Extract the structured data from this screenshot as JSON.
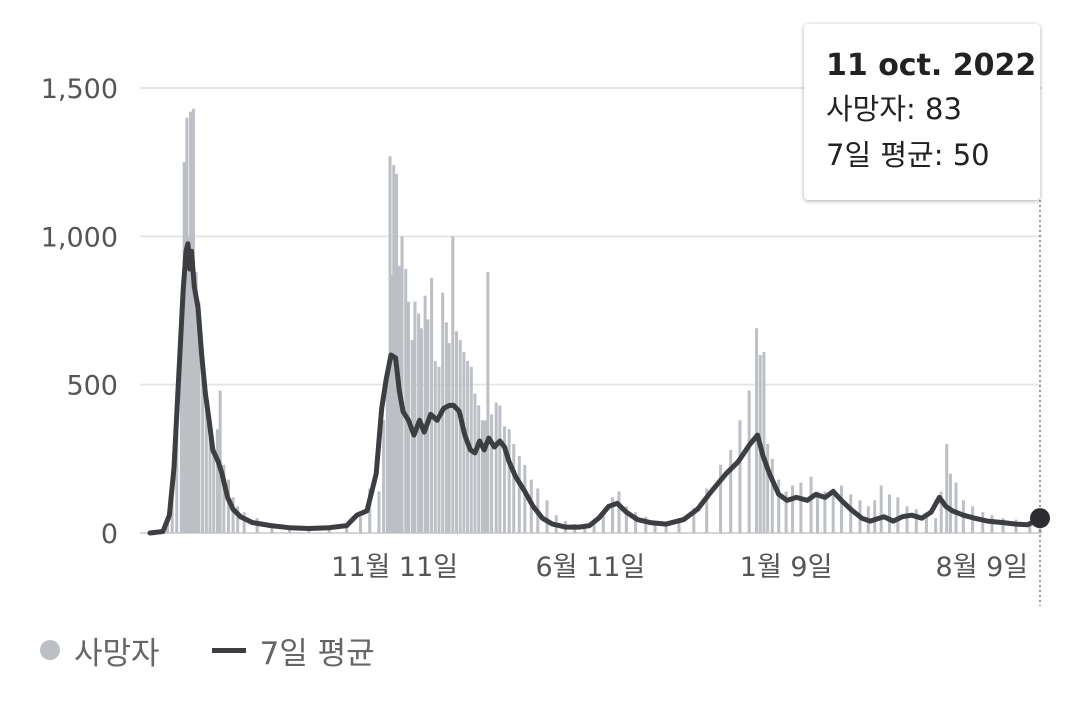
{
  "chart_data": {
    "type": "bar",
    "title": "",
    "xlabel": "",
    "ylabel": "",
    "ylim": [
      0,
      1500
    ],
    "grid": true,
    "y_ticks": [
      0,
      500,
      1000,
      1500
    ],
    "y_tick_labels": [
      "0",
      "500",
      "1,000",
      "1,500"
    ],
    "x_range": [
      "2020-02-20",
      "2022-10-11"
    ],
    "x_ticks": [
      {
        "date": "2020-11-11",
        "label": "11월 11일"
      },
      {
        "date": "2021-06-11",
        "label": "6월 11일"
      },
      {
        "date": "2022-01-09",
        "label": "1월 9일"
      },
      {
        "date": "2022-08-09",
        "label": "8월 9일"
      }
    ],
    "legend_position": "bottom-left",
    "colors": {
      "bars": "#bcbfc4",
      "line": "#3c3e42",
      "grid": "#e6e6e6"
    },
    "series": [
      {
        "name": "사망자",
        "kind": "bar",
        "points": [
          [
            "2020-02-20",
            0
          ],
          [
            "2020-03-05",
            5
          ],
          [
            "2020-03-10",
            40
          ],
          [
            "2020-03-15",
            150
          ],
          [
            "2020-03-20",
            420
          ],
          [
            "2020-03-25",
            780
          ],
          [
            "2020-03-28",
            1250
          ],
          [
            "2020-03-31",
            1400
          ],
          [
            "2020-04-02",
            1000
          ],
          [
            "2020-04-04",
            1420
          ],
          [
            "2020-04-07",
            1430
          ],
          [
            "2020-04-10",
            880
          ],
          [
            "2020-04-13",
            780
          ],
          [
            "2020-04-17",
            600
          ],
          [
            "2020-04-21",
            450
          ],
          [
            "2020-04-25",
            360
          ],
          [
            "2020-04-29",
            290
          ],
          [
            "2020-05-03",
            350
          ],
          [
            "2020-05-06",
            480
          ],
          [
            "2020-05-10",
            230
          ],
          [
            "2020-05-15",
            180
          ],
          [
            "2020-05-20",
            120
          ],
          [
            "2020-05-25",
            90
          ],
          [
            "2020-06-01",
            70
          ],
          [
            "2020-06-15",
            50
          ],
          [
            "2020-07-01",
            30
          ],
          [
            "2020-07-20",
            20
          ],
          [
            "2020-08-10",
            15
          ],
          [
            "2020-09-01",
            15
          ],
          [
            "2020-09-20",
            30
          ],
          [
            "2020-10-05",
            55
          ],
          [
            "2020-10-15",
            150
          ],
          [
            "2020-10-25",
            140
          ],
          [
            "2020-10-30",
            380
          ],
          [
            "2020-11-03",
            520
          ],
          [
            "2020-11-06",
            1270
          ],
          [
            "2020-11-08",
            870
          ],
          [
            "2020-11-10",
            1240
          ],
          [
            "2020-11-13",
            1210
          ],
          [
            "2020-11-16",
            900
          ],
          [
            "2020-11-19",
            1000
          ],
          [
            "2020-11-23",
            890
          ],
          [
            "2020-11-26",
            780
          ],
          [
            "2020-11-30",
            650
          ],
          [
            "2020-12-03",
            780
          ],
          [
            "2020-12-07",
            740
          ],
          [
            "2020-12-10",
            690
          ],
          [
            "2020-12-14",
            800
          ],
          [
            "2020-12-17",
            720
          ],
          [
            "2020-12-21",
            860
          ],
          [
            "2020-12-25",
            580
          ],
          [
            "2020-12-29",
            560
          ],
          [
            "2021-01-02",
            810
          ],
          [
            "2021-01-06",
            710
          ],
          [
            "2021-01-09",
            640
          ],
          [
            "2021-01-13",
            1000
          ],
          [
            "2021-01-17",
            680
          ],
          [
            "2021-01-21",
            650
          ],
          [
            "2021-01-25",
            610
          ],
          [
            "2021-01-29",
            580
          ],
          [
            "2021-02-02",
            560
          ],
          [
            "2021-02-06",
            470
          ],
          [
            "2021-02-10",
            430
          ],
          [
            "2021-02-14",
            380
          ],
          [
            "2021-02-17",
            380
          ],
          [
            "2021-02-20",
            880
          ],
          [
            "2021-02-24",
            400
          ],
          [
            "2021-03-01",
            440
          ],
          [
            "2021-03-05",
            430
          ],
          [
            "2021-03-10",
            360
          ],
          [
            "2021-03-15",
            350
          ],
          [
            "2021-03-20",
            300
          ],
          [
            "2021-03-26",
            260
          ],
          [
            "2021-04-01",
            230
          ],
          [
            "2021-04-08",
            180
          ],
          [
            "2021-04-15",
            150
          ],
          [
            "2021-04-25",
            110
          ],
          [
            "2021-05-05",
            60
          ],
          [
            "2021-05-15",
            40
          ],
          [
            "2021-05-25",
            30
          ],
          [
            "2021-06-05",
            20
          ],
          [
            "2021-06-15",
            40
          ],
          [
            "2021-06-25",
            70
          ],
          [
            "2021-07-05",
            120
          ],
          [
            "2021-07-12",
            140
          ],
          [
            "2021-07-20",
            90
          ],
          [
            "2021-07-30",
            70
          ],
          [
            "2021-08-10",
            55
          ],
          [
            "2021-08-20",
            40
          ],
          [
            "2021-09-01",
            35
          ],
          [
            "2021-09-15",
            50
          ],
          [
            "2021-10-01",
            85
          ],
          [
            "2021-10-15",
            150
          ],
          [
            "2021-10-30",
            230
          ],
          [
            "2021-11-10",
            280
          ],
          [
            "2021-11-20",
            380
          ],
          [
            "2021-11-30",
            480
          ],
          [
            "2021-12-08",
            690
          ],
          [
            "2021-12-12",
            600
          ],
          [
            "2021-12-16",
            610
          ],
          [
            "2021-12-20",
            300
          ],
          [
            "2021-12-25",
            250
          ],
          [
            "2022-01-01",
            180
          ],
          [
            "2022-01-09",
            140
          ],
          [
            "2022-01-16",
            160
          ],
          [
            "2022-01-25",
            170
          ],
          [
            "2022-02-05",
            190
          ],
          [
            "2022-02-12",
            140
          ],
          [
            "2022-02-20",
            140
          ],
          [
            "2022-03-01",
            150
          ],
          [
            "2022-03-10",
            160
          ],
          [
            "2022-03-20",
            130
          ],
          [
            "2022-03-30",
            110
          ],
          [
            "2022-04-08",
            90
          ],
          [
            "2022-04-15",
            110
          ],
          [
            "2022-04-22",
            160
          ],
          [
            "2022-05-01",
            130
          ],
          [
            "2022-05-10",
            120
          ],
          [
            "2022-05-20",
            90
          ],
          [
            "2022-05-30",
            80
          ],
          [
            "2022-06-10",
            60
          ],
          [
            "2022-06-20",
            50
          ],
          [
            "2022-06-26",
            140
          ],
          [
            "2022-07-02",
            300
          ],
          [
            "2022-07-06",
            200
          ],
          [
            "2022-07-12",
            170
          ],
          [
            "2022-07-20",
            110
          ],
          [
            "2022-07-30",
            90
          ],
          [
            "2022-08-10",
            70
          ],
          [
            "2022-08-20",
            60
          ],
          [
            "2022-09-01",
            50
          ],
          [
            "2022-09-15",
            45
          ],
          [
            "2022-09-30",
            40
          ],
          [
            "2022-10-11",
            83
          ]
        ]
      },
      {
        "name": "7일 평균",
        "kind": "line",
        "points": [
          [
            "2020-02-20",
            0
          ],
          [
            "2020-03-05",
            5
          ],
          [
            "2020-03-12",
            60
          ],
          [
            "2020-03-17",
            220
          ],
          [
            "2020-03-22",
            520
          ],
          [
            "2020-03-27",
            820
          ],
          [
            "2020-03-30",
            950
          ],
          [
            "2020-04-01",
            975
          ],
          [
            "2020-04-03",
            890
          ],
          [
            "2020-04-05",
            950
          ],
          [
            "2020-04-08",
            830
          ],
          [
            "2020-04-12",
            760
          ],
          [
            "2020-04-16",
            600
          ],
          [
            "2020-04-20",
            470
          ],
          [
            "2020-04-24",
            380
          ],
          [
            "2020-04-28",
            280
          ],
          [
            "2020-05-04",
            240
          ],
          [
            "2020-05-08",
            200
          ],
          [
            "2020-05-14",
            120
          ],
          [
            "2020-05-20",
            80
          ],
          [
            "2020-05-28",
            55
          ],
          [
            "2020-06-10",
            35
          ],
          [
            "2020-06-30",
            25
          ],
          [
            "2020-07-20",
            18
          ],
          [
            "2020-08-10",
            15
          ],
          [
            "2020-09-01",
            18
          ],
          [
            "2020-09-20",
            25
          ],
          [
            "2020-10-01",
            60
          ],
          [
            "2020-10-12",
            75
          ],
          [
            "2020-10-22",
            200
          ],
          [
            "2020-10-28",
            420
          ],
          [
            "2020-11-02",
            520
          ],
          [
            "2020-11-07",
            600
          ],
          [
            "2020-11-12",
            590
          ],
          [
            "2020-11-16",
            480
          ],
          [
            "2020-11-20",
            410
          ],
          [
            "2020-11-26",
            380
          ],
          [
            "2020-12-02",
            330
          ],
          [
            "2020-12-08",
            380
          ],
          [
            "2020-12-13",
            340
          ],
          [
            "2020-12-20",
            400
          ],
          [
            "2020-12-27",
            380
          ],
          [
            "2021-01-03",
            420
          ],
          [
            "2021-01-09",
            430
          ],
          [
            "2021-01-14",
            430
          ],
          [
            "2021-01-20",
            410
          ],
          [
            "2021-01-26",
            330
          ],
          [
            "2021-02-01",
            280
          ],
          [
            "2021-02-06",
            270
          ],
          [
            "2021-02-11",
            310
          ],
          [
            "2021-02-16",
            280
          ],
          [
            "2021-02-21",
            320
          ],
          [
            "2021-02-27",
            290
          ],
          [
            "2021-03-05",
            310
          ],
          [
            "2021-03-10",
            290
          ],
          [
            "2021-03-15",
            240
          ],
          [
            "2021-03-22",
            190
          ],
          [
            "2021-04-01",
            140
          ],
          [
            "2021-04-10",
            90
          ],
          [
            "2021-04-20",
            50
          ],
          [
            "2021-05-01",
            30
          ],
          [
            "2021-05-15",
            20
          ],
          [
            "2021-05-30",
            20
          ],
          [
            "2021-06-10",
            25
          ],
          [
            "2021-06-20",
            50
          ],
          [
            "2021-07-01",
            90
          ],
          [
            "2021-07-10",
            100
          ],
          [
            "2021-07-20",
            70
          ],
          [
            "2021-08-01",
            45
          ],
          [
            "2021-08-15",
            35
          ],
          [
            "2021-09-01",
            30
          ],
          [
            "2021-09-20",
            45
          ],
          [
            "2021-10-05",
            80
          ],
          [
            "2021-10-20",
            140
          ],
          [
            "2021-11-05",
            200
          ],
          [
            "2021-11-18",
            240
          ],
          [
            "2021-12-01",
            300
          ],
          [
            "2021-12-09",
            330
          ],
          [
            "2021-12-15",
            260
          ],
          [
            "2021-12-22",
            200
          ],
          [
            "2022-01-01",
            130
          ],
          [
            "2022-01-10",
            110
          ],
          [
            "2022-01-20",
            120
          ],
          [
            "2022-02-01",
            110
          ],
          [
            "2022-02-10",
            130
          ],
          [
            "2022-02-20",
            120
          ],
          [
            "2022-03-01",
            140
          ],
          [
            "2022-03-10",
            110
          ],
          [
            "2022-03-20",
            80
          ],
          [
            "2022-04-01",
            50
          ],
          [
            "2022-04-10",
            40
          ],
          [
            "2022-04-25",
            55
          ],
          [
            "2022-05-05",
            40
          ],
          [
            "2022-05-15",
            55
          ],
          [
            "2022-05-25",
            60
          ],
          [
            "2022-06-05",
            50
          ],
          [
            "2022-06-15",
            70
          ],
          [
            "2022-06-24",
            120
          ],
          [
            "2022-07-01",
            90
          ],
          [
            "2022-07-08",
            75
          ],
          [
            "2022-07-20",
            60
          ],
          [
            "2022-08-01",
            50
          ],
          [
            "2022-08-15",
            40
          ],
          [
            "2022-09-01",
            35
          ],
          [
            "2022-09-15",
            30
          ],
          [
            "2022-09-28",
            28
          ],
          [
            "2022-10-11",
            50
          ]
        ]
      }
    ],
    "highlight": {
      "date": "2022-10-11",
      "value": 50
    }
  },
  "tooltip": {
    "title": "11 oct. 2022",
    "deaths_label": "사망자: 83",
    "avg_label": "7일 평균: 50"
  },
  "legend": {
    "deaths": "사망자",
    "avg": "7일 평균"
  }
}
